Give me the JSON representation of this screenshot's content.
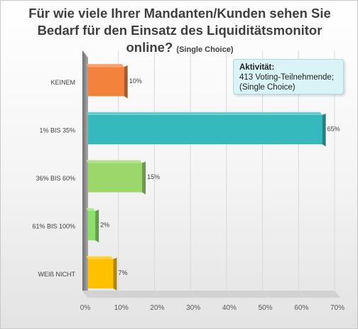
{
  "title": {
    "line1": "Für wie viele Ihrer Mandanten/Kunden sehen Sie",
    "line2": "Bedarf für den Einsatz des Liquiditätsmonitor",
    "line3": "online?",
    "note": "(Single Choice)"
  },
  "info_box": {
    "heading": "Aktivität:",
    "line1": "413 Voting-Teilnehmende;",
    "line2": "(Single Choice)"
  },
  "chart_data": {
    "type": "bar",
    "orientation": "horizontal",
    "style": "3d",
    "categories": [
      "KEINEM",
      "1%  BIS 35%",
      "36% BIS 60%",
      "61% BIS 100%",
      "WEIß NICHT"
    ],
    "values": [
      10,
      65,
      15,
      2,
      7
    ],
    "value_labels": [
      "10%",
      "65%",
      "15%",
      "2%",
      "7%"
    ],
    "colors": [
      "#f2823c",
      "#35b9bc",
      "#9bd76a",
      "#8fe06a",
      "#ffc000"
    ],
    "xlim": [
      0,
      70
    ],
    "xticks": [
      0,
      10,
      20,
      30,
      40,
      50,
      60,
      70
    ],
    "xtick_labels": [
      "0%",
      "10%",
      "20%",
      "30%",
      "40%",
      "50%",
      "60%",
      "70%"
    ],
    "grid": true
  }
}
